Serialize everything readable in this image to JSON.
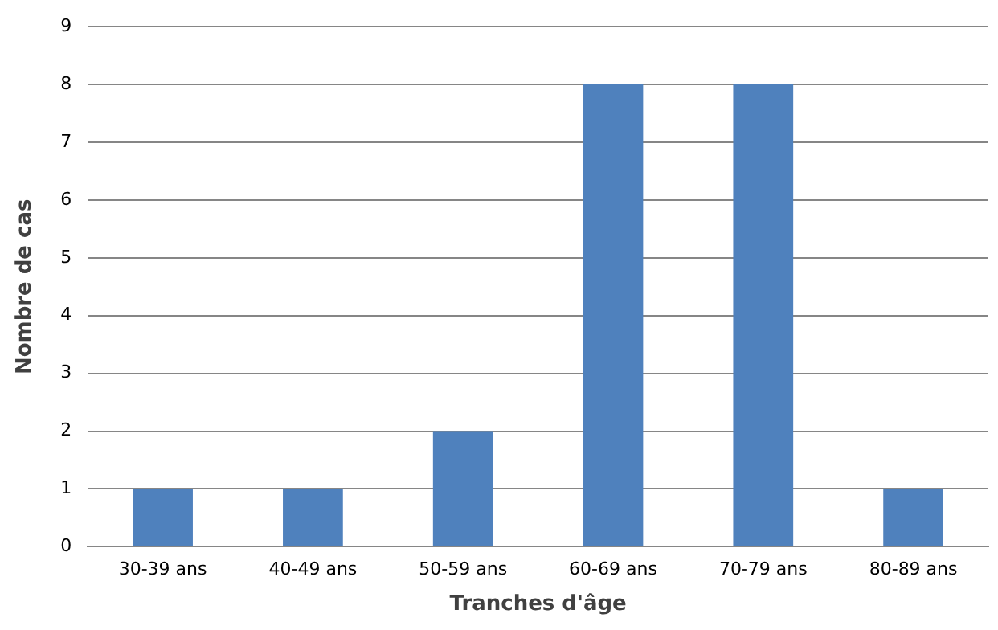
{
  "chart_data": {
    "type": "bar",
    "xlabel": "Tranches d'âge",
    "ylabel": "Nombre de cas",
    "categories": [
      "30-39 ans",
      "40-49 ans",
      "50-59 ans",
      "60-69 ans",
      "70-79 ans",
      "80-89 ans"
    ],
    "values": [
      1,
      1,
      2,
      8,
      8,
      1
    ],
    "color": "#4f81bd",
    "ylim": [
      0,
      9
    ],
    "yticks": [
      0,
      1,
      2,
      3,
      4,
      5,
      6,
      7,
      8,
      9
    ],
    "grid": "y",
    "legend": false
  }
}
